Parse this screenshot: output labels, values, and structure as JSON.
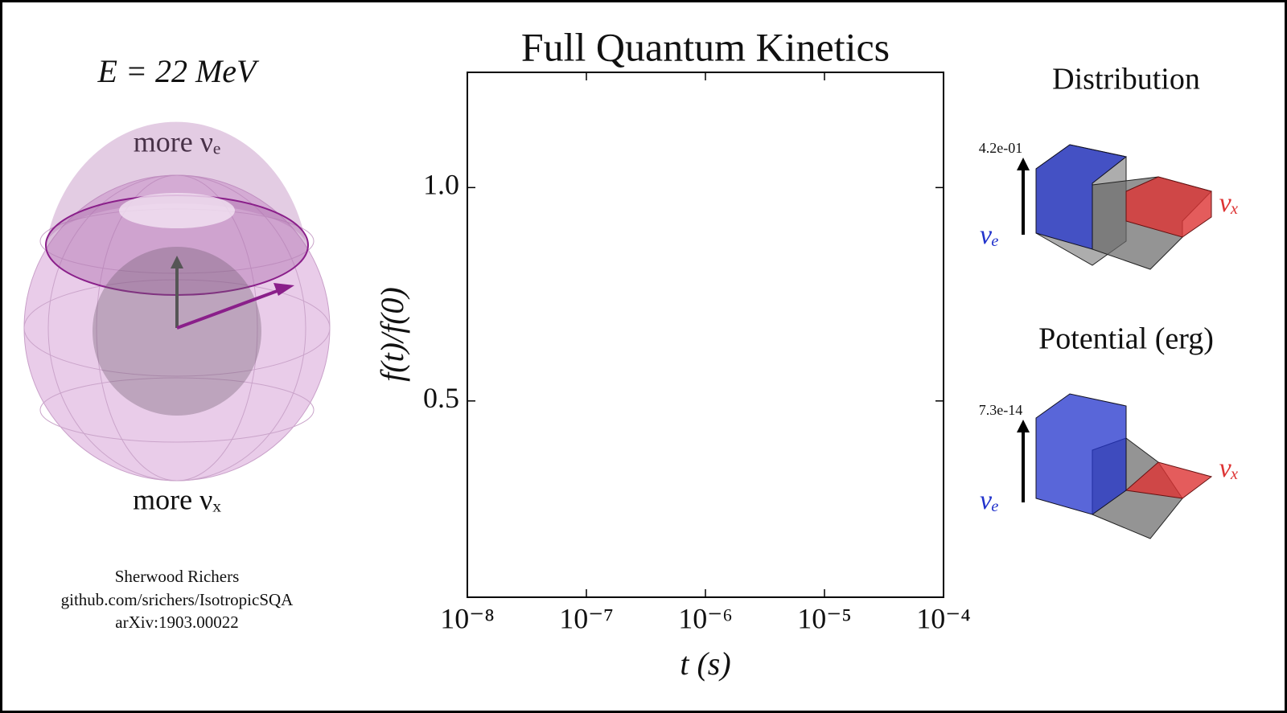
{
  "chart_data": {
    "type": "line",
    "title": "Full Quantum Kinetics",
    "x_label": "t (s)",
    "y_label": "f(t)/f(0)",
    "log_x": true,
    "xlim": [
      1e-08,
      0.0001
    ],
    "xticks": [
      {
        "value": 1e-08,
        "label": "10⁻⁸"
      },
      {
        "value": 1e-07,
        "label": "10⁻⁷"
      },
      {
        "value": 1e-06,
        "label": "10⁻⁶"
      },
      {
        "value": 1e-05,
        "label": "10⁻⁵"
      },
      {
        "value": 0.0001,
        "label": "10⁻⁴"
      }
    ],
    "ylim": [
      0.04,
      1.27
    ],
    "yticks": [
      {
        "value": 0.5,
        "label": "0.5"
      },
      {
        "value": 1,
        "label": "1.0"
      }
    ],
    "grid": false
  },
  "sphere": {
    "energy": "E = 22 MeV",
    "top": "more νₑ",
    "bottom": "more νₓ"
  },
  "credits": [
    "Sherwood Richers",
    "github.com/srichers/IsotropicSQA",
    "arXiv:1903.00022"
  ],
  "distribution": {
    "title": "Distribution",
    "scale": "4.2e-01",
    "left": "νₑ",
    "right": "νₓ"
  },
  "potential": {
    "title": "Potential (erg)",
    "scale": "7.3e-14",
    "left": "νₑ",
    "right": "νₓ"
  }
}
